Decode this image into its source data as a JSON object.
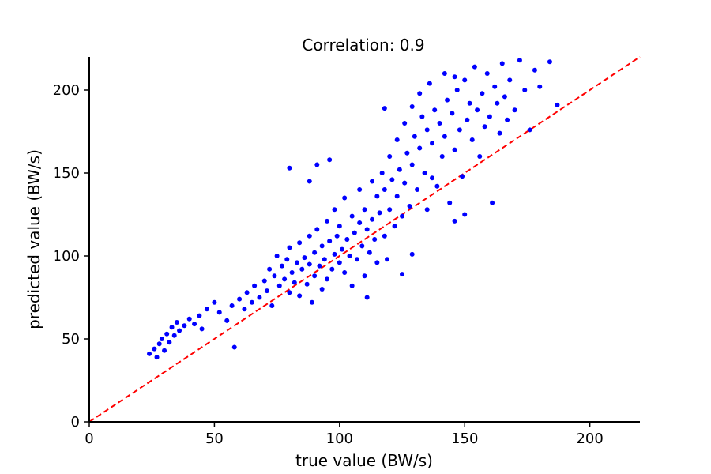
{
  "chart_data": {
    "type": "scatter",
    "title": "Correlation: 0.9",
    "xlabel": "true value (BW/s)",
    "ylabel": "predicted value (BW/s)",
    "xlim": [
      0,
      220
    ],
    "ylim": [
      0,
      220
    ],
    "xticks": [
      0,
      50,
      100,
      150,
      200
    ],
    "yticks": [
      0,
      50,
      100,
      150,
      200
    ],
    "grid": false,
    "legend": "none",
    "point_color": "#0000ff",
    "reference_line": {
      "style": "dashed",
      "color": "#ff0000",
      "from": [
        0,
        0
      ],
      "to": [
        220,
        220
      ]
    },
    "series": [
      {
        "values": [
          [
            24,
            41
          ],
          [
            26,
            44
          ],
          [
            27,
            39
          ],
          [
            28,
            47
          ],
          [
            29,
            50
          ],
          [
            30,
            43
          ],
          [
            31,
            53
          ],
          [
            32,
            48
          ],
          [
            33,
            57
          ],
          [
            34,
            52
          ],
          [
            35,
            60
          ],
          [
            36,
            55
          ],
          [
            38,
            58
          ],
          [
            40,
            62
          ],
          [
            42,
            59
          ],
          [
            44,
            64
          ],
          [
            45,
            56
          ],
          [
            47,
            68
          ],
          [
            50,
            72
          ],
          [
            52,
            66
          ],
          [
            55,
            61
          ],
          [
            57,
            70
          ],
          [
            58,
            45
          ],
          [
            60,
            74
          ],
          [
            62,
            68
          ],
          [
            63,
            78
          ],
          [
            65,
            72
          ],
          [
            66,
            82
          ],
          [
            68,
            75
          ],
          [
            70,
            85
          ],
          [
            71,
            79
          ],
          [
            72,
            92
          ],
          [
            73,
            70
          ],
          [
            74,
            88
          ],
          [
            75,
            100
          ],
          [
            76,
            82
          ],
          [
            77,
            94
          ],
          [
            78,
            86
          ],
          [
            79,
            98
          ],
          [
            80,
            78
          ],
          [
            80,
            105
          ],
          [
            81,
            90
          ],
          [
            82,
            84
          ],
          [
            83,
            96
          ],
          [
            84,
            76
          ],
          [
            84,
            108
          ],
          [
            85,
            92
          ],
          [
            86,
            99
          ],
          [
            87,
            83
          ],
          [
            88,
            112
          ],
          [
            88,
            95
          ],
          [
            89,
            72
          ],
          [
            90,
            102
          ],
          [
            90,
            88
          ],
          [
            91,
            116
          ],
          [
            92,
            94
          ],
          [
            93,
            80
          ],
          [
            93,
            106
          ],
          [
            94,
            98
          ],
          [
            95,
            121
          ],
          [
            95,
            86
          ],
          [
            96,
            109
          ],
          [
            97,
            92
          ],
          [
            98,
            128
          ],
          [
            98,
            101
          ],
          [
            99,
            112
          ],
          [
            100,
            96
          ],
          [
            100,
            118
          ],
          [
            101,
            104
          ],
          [
            102,
            135
          ],
          [
            102,
            90
          ],
          [
            103,
            110
          ],
          [
            104,
            100
          ],
          [
            105,
            124
          ],
          [
            105,
            82
          ],
          [
            106,
            114
          ],
          [
            107,
            98
          ],
          [
            108,
            140
          ],
          [
            108,
            120
          ],
          [
            109,
            106
          ],
          [
            110,
            128
          ],
          [
            110,
            88
          ],
          [
            111,
            116
          ],
          [
            112,
            102
          ],
          [
            113,
            145
          ],
          [
            113,
            122
          ],
          [
            114,
            110
          ],
          [
            115,
            136
          ],
          [
            115,
            96
          ],
          [
            116,
            126
          ],
          [
            117,
            150
          ],
          [
            118,
            112
          ],
          [
            118,
            140
          ],
          [
            119,
            98
          ],
          [
            120,
            160
          ],
          [
            120,
            128
          ],
          [
            121,
            146
          ],
          [
            122,
            118
          ],
          [
            123,
            170
          ],
          [
            123,
            136
          ],
          [
            124,
            152
          ],
          [
            125,
            124
          ],
          [
            126,
            180
          ],
          [
            126,
            144
          ],
          [
            127,
            162
          ],
          [
            128,
            130
          ],
          [
            129,
            190
          ],
          [
            129,
            155
          ],
          [
            130,
            172
          ],
          [
            131,
            140
          ],
          [
            132,
            198
          ],
          [
            132,
            165
          ],
          [
            133,
            184
          ],
          [
            134,
            150
          ],
          [
            135,
            176
          ],
          [
            135,
            128
          ],
          [
            136,
            204
          ],
          [
            137,
            168
          ],
          [
            138,
            188
          ],
          [
            139,
            142
          ],
          [
            140,
            180
          ],
          [
            141,
            160
          ],
          [
            142,
            210
          ],
          [
            142,
            172
          ],
          [
            143,
            194
          ],
          [
            144,
            132
          ],
          [
            145,
            186
          ],
          [
            146,
            164
          ],
          [
            147,
            200
          ],
          [
            148,
            176
          ],
          [
            149,
            148
          ],
          [
            150,
            206
          ],
          [
            151,
            182
          ],
          [
            152,
            192
          ],
          [
            153,
            170
          ],
          [
            154,
            214
          ],
          [
            155,
            188
          ],
          [
            156,
            160
          ],
          [
            157,
            198
          ],
          [
            158,
            178
          ],
          [
            159,
            210
          ],
          [
            160,
            184
          ],
          [
            161,
            132
          ],
          [
            162,
            202
          ],
          [
            163,
            192
          ],
          [
            164,
            174
          ],
          [
            165,
            216
          ],
          [
            166,
            196
          ],
          [
            167,
            182
          ],
          [
            168,
            206
          ],
          [
            170,
            188
          ],
          [
            172,
            218
          ],
          [
            174,
            200
          ],
          [
            176,
            176
          ],
          [
            178,
            212
          ],
          [
            180,
            202
          ],
          [
            184,
            217
          ],
          [
            187,
            191
          ],
          [
            129,
            101
          ],
          [
            137,
            147
          ],
          [
            146,
            208
          ],
          [
            118,
            189
          ],
          [
            91,
            155
          ],
          [
            88,
            145
          ],
          [
            96,
            158
          ],
          [
            80,
            153
          ],
          [
            146,
            121
          ],
          [
            150,
            125
          ],
          [
            125,
            89
          ],
          [
            111,
            75
          ]
        ]
      }
    ]
  }
}
